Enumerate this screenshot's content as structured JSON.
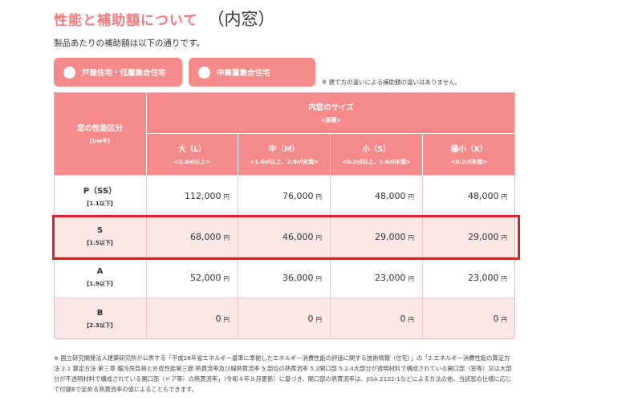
{
  "page": {
    "title": "性能と補助額について",
    "title_suffix": "（内窓）",
    "intro": "製品あたりの補助額は以下の通りです。"
  },
  "tabs": [
    {
      "label": "戸建住宅・低層集合住宅"
    },
    {
      "label": "中高層集合住宅"
    }
  ],
  "tab_note": "※ 建て方の違いによる補助額の違いはありません。",
  "table": {
    "row_header_title": "窓の性能区分",
    "row_header_sub": "【Uw※】",
    "col_group_title": "内窓のサイズ",
    "col_group_sub": "<面積>",
    "columns": [
      {
        "name": "大（L）",
        "range": "<2.8㎡以上>"
      },
      {
        "name": "中（M）",
        "range": "<1.6㎡以上、2.8㎡未満>"
      },
      {
        "name": "小（S）",
        "range": "<0.2㎡以上、1.6㎡未満>"
      },
      {
        "name": "極小（X）",
        "range": "<0.2㎡未満>"
      }
    ],
    "unit": "円",
    "rows": [
      {
        "class": "P（SS）",
        "range": "【1.1以下】",
        "values": [
          "112,000",
          "76,000",
          "48,000",
          "48,000"
        ]
      },
      {
        "class": "S",
        "range": "【1.5以下】",
        "values": [
          "68,000",
          "46,000",
          "29,000",
          "29,000"
        ]
      },
      {
        "class": "A",
        "range": "【1.9以下】",
        "values": [
          "52,000",
          "36,000",
          "23,000",
          "23,000"
        ]
      },
      {
        "class": "B",
        "range": "【2.3以下】",
        "values": [
          "0",
          "0",
          "0",
          "0"
        ]
      }
    ]
  },
  "footnote": "※ 国立研究開発法人建築研究所が公表する「平成28年省エネルギー基準に準拠したエネルギー消費性能の評価に関する技術情報（住宅）」の「2.エネルギー消費性能の算定方法 2.1 算定方法 第三章 暖冷房負荷と外皮性能第三節 熱貫流率及び線熱貫流率 5.部位の熱貫流率 5.2開口部 5.2.4大部分が透明材料で構成されている開口部（窓等）又は大部分が不透明材料で構成されている開口部（ドア等）の熱貫流率」（令和４年９月更新）に基づき、開口部の熱貫流率は、JISA 2102-1などによる方法の他、当該窓の仕様に応じて付録Bで定める熱貫流率の値によることもできます。",
  "colors": {
    "accent": "#f48a8a",
    "title": "#f27a7a",
    "row_tint": "#fde8e8",
    "highlight": "#e02020"
  }
}
